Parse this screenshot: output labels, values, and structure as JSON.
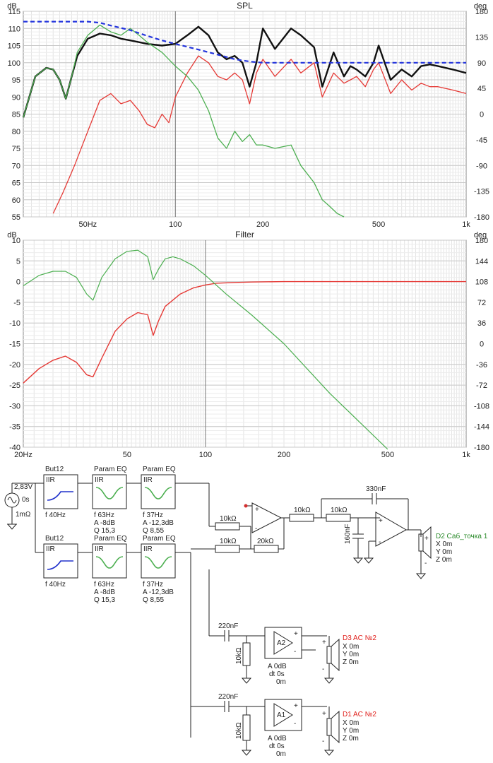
{
  "chart_data": [
    {
      "type": "line",
      "title": "SPL",
      "ylabel": "dB",
      "y2label": "deg",
      "x_scale": "log",
      "xlim": [
        30,
        1000
      ],
      "ylim": [
        55,
        115
      ],
      "y2lim": [
        -180,
        180
      ],
      "grid": true,
      "x_ticks": [
        {
          "v": 50,
          "t": "50Hz"
        },
        {
          "v": 100,
          "t": "100"
        },
        {
          "v": 200,
          "t": "200"
        },
        {
          "v": 500,
          "t": "500"
        },
        {
          "v": 1000,
          "t": "1k"
        }
      ],
      "y_ticks": [
        115,
        110,
        105,
        100,
        95,
        90,
        85,
        80,
        75,
        70,
        65,
        60,
        55
      ],
      "y2_ticks": [
        180,
        135,
        90,
        45,
        0,
        -45,
        -90,
        -135,
        -180
      ],
      "series": [
        {
          "color": "#111111",
          "width": 2.4,
          "dash": "",
          "axis": "left",
          "x": [
            30,
            33,
            36,
            38,
            40,
            42,
            44,
            46,
            50,
            55,
            60,
            65,
            70,
            75,
            80,
            90,
            100,
            110,
            120,
            130,
            140,
            150,
            160,
            170,
            180,
            190,
            200,
            220,
            250,
            270,
            300,
            320,
            350,
            380,
            400,
            420,
            450,
            480,
            500,
            550,
            600,
            650,
            700,
            750,
            800,
            900,
            1000
          ],
          "y": [
            84,
            96,
            98.5,
            98,
            95,
            89.5,
            96,
            102,
            107,
            108.5,
            108,
            107,
            106.5,
            106,
            105.5,
            105,
            105.5,
            108,
            110.5,
            108,
            103,
            101,
            102,
            100,
            93,
            100,
            110,
            104,
            110,
            108,
            104.5,
            93,
            103,
            96,
            99,
            98,
            96,
            100,
            105,
            95,
            98,
            96,
            99,
            99.5,
            99,
            98,
            97
          ]
        },
        {
          "color": "#e53935",
          "width": 1.3,
          "dash": "",
          "axis": "left",
          "x": [
            38,
            41,
            45,
            50,
            55,
            60,
            65,
            70,
            75,
            80,
            85,
            90,
            95,
            100,
            110,
            120,
            130,
            140,
            150,
            160,
            170,
            180,
            190,
            200,
            220,
            250,
            270,
            300,
            320,
            350,
            380,
            400,
            420,
            450,
            480,
            500,
            550,
            600,
            650,
            700,
            750,
            800,
            900,
            1000
          ],
          "y": [
            56,
            62,
            70,
            80,
            89,
            91,
            88,
            89,
            86,
            82,
            81,
            85,
            82.5,
            90,
            97,
            102,
            100,
            96,
            95,
            97,
            95,
            88,
            97,
            101,
            96,
            101,
            97,
            100,
            90,
            97,
            94,
            95,
            96,
            93,
            98,
            100,
            91,
            95,
            92,
            94,
            93,
            93,
            92,
            91
          ]
        },
        {
          "color": "#4caf50",
          "width": 1.3,
          "dash": "",
          "axis": "left",
          "x": [
            30,
            33,
            36,
            38,
            40,
            42,
            44,
            46,
            50,
            55,
            60,
            65,
            70,
            75,
            80,
            90,
            100,
            110,
            120,
            130,
            140,
            150,
            160,
            170,
            180,
            190,
            200,
            220,
            250,
            270,
            300,
            320,
            340,
            360,
            380
          ],
          "y": [
            84,
            96,
            98.5,
            98,
            95,
            89.5,
            96,
            103,
            108,
            111,
            109,
            108,
            110,
            108,
            106,
            103,
            99,
            96,
            92,
            86,
            78,
            75,
            80,
            77,
            79,
            76,
            76,
            75,
            76,
            70,
            65,
            60,
            58,
            56,
            55
          ]
        },
        {
          "color": "#2233dd",
          "width": 2.2,
          "dash": "6,4",
          "axis": "right",
          "x": [
            30,
            40,
            50,
            55,
            60,
            70,
            80,
            90,
            100,
            120,
            140,
            160,
            180,
            200,
            300,
            500,
            700,
            1000
          ],
          "y": [
            162,
            162,
            162,
            160,
            155,
            147,
            137,
            129,
            123,
            113,
            104,
            96,
            92,
            90,
            90,
            90,
            90,
            90
          ]
        }
      ]
    },
    {
      "type": "line",
      "title": "Filter",
      "ylabel": "dB",
      "y2label": "deg",
      "x_scale": "log",
      "xlim": [
        20,
        1000
      ],
      "ylim": [
        -40,
        10
      ],
      "y2lim": [
        -180,
        180
      ],
      "grid": true,
      "x_ticks": [
        {
          "v": 20,
          "t": "20Hz"
        },
        {
          "v": 50,
          "t": "50"
        },
        {
          "v": 100,
          "t": "100"
        },
        {
          "v": 200,
          "t": "200"
        },
        {
          "v": 500,
          "t": "500"
        },
        {
          "v": 1000,
          "t": "1k"
        }
      ],
      "y_ticks": [
        10,
        5,
        0,
        -5,
        -10,
        -15,
        -20,
        -25,
        -30,
        -35,
        -40
      ],
      "y2_ticks": [
        180,
        144,
        108,
        72,
        36,
        0,
        -36,
        -72,
        -108,
        -144,
        -180
      ],
      "series": [
        {
          "color": "#e53935",
          "width": 1.4,
          "dash": "",
          "axis": "left",
          "x": [
            20,
            23,
            26,
            29,
            32,
            35,
            37,
            40,
            45,
            50,
            55,
            60,
            63,
            66,
            70,
            80,
            90,
            100,
            110,
            130,
            150,
            200,
            300,
            500,
            1000
          ],
          "y": [
            -24.5,
            -21,
            -19,
            -18,
            -19.5,
            -22.5,
            -23,
            -18.5,
            -12,
            -9,
            -7.5,
            -8,
            -13,
            -9.5,
            -6,
            -3,
            -1.5,
            -0.8,
            -0.4,
            -0.2,
            -0.1,
            0,
            0,
            0,
            0
          ]
        },
        {
          "color": "#4caf50",
          "width": 1.2,
          "dash": "",
          "axis": "left",
          "x": [
            20,
            23,
            26,
            29,
            32,
            35,
            37,
            40,
            45,
            50,
            55,
            60,
            63,
            66,
            70,
            75,
            80,
            90,
            100,
            120,
            150,
            200,
            300,
            500
          ],
          "y": [
            -1,
            1.5,
            2.5,
            2.5,
            1,
            -3,
            -4.5,
            1,
            5.5,
            7.3,
            7.6,
            6,
            0.5,
            3,
            5.5,
            6,
            5.5,
            3.8,
            1.5,
            -3,
            -8,
            -15,
            -27,
            -40.5
          ]
        }
      ]
    }
  ],
  "schematic": {
    "source": {
      "voltage": "2,83V",
      "delay": "0s",
      "impedance": "1mΩ"
    },
    "row1_blocks": [
      {
        "title": "But12",
        "type": "IIR",
        "params": [
          "f   40Hz"
        ]
      },
      {
        "title": "Param EQ",
        "type": "IIR",
        "params": [
          "f   63Hz",
          "A   -8dB",
          "Q   15,3"
        ]
      },
      {
        "title": "Param EQ",
        "type": "IIR",
        "params": [
          "f   37Hz",
          "A   -12,3dB",
          "Q   8,55"
        ]
      }
    ],
    "row2_blocks": [
      {
        "title": "But12",
        "type": "IIR",
        "params": [
          "f   40Hz"
        ]
      },
      {
        "title": "Param EQ",
        "type": "IIR",
        "params": [
          "f   63Hz",
          "A   -8dB",
          "Q   15,3"
        ]
      },
      {
        "title": "Param EQ",
        "type": "IIR",
        "params": [
          "f   37Hz",
          "A   -12,3dB",
          "Q   8,55"
        ]
      }
    ],
    "r_in1": "10kΩ",
    "r_in2": "10kΩ",
    "r_fb": "20kΩ",
    "r_s1": "10kΩ",
    "r_s2": "10kΩ",
    "c_fb": "330nF",
    "c_gnd": "160nF",
    "sub_speaker": {
      "name": "D2 Саб_точка 1",
      "x": "X 0m",
      "y": "Y 0m",
      "z": "Z 0m"
    },
    "ch_a2": {
      "cap": "220nF",
      "res": "10kΩ",
      "amp": "A2",
      "gain": "A   0dB",
      "dt": "dt 0s",
      "extra": "0m",
      "speaker": {
        "name": "D3 AC №2",
        "x": "X 0m",
        "y": "Y 0m",
        "z": "Z 0m"
      }
    },
    "ch_a1": {
      "cap": "220nF",
      "res": "10kΩ",
      "amp": "A1",
      "gain": "A   0dB",
      "dt": "dt 0s",
      "extra": "0m",
      "speaker": {
        "name": "D1 AC №2",
        "x": "X 0m",
        "y": "Y 0m",
        "z": "Z 0m"
      }
    },
    "plus_sign": "+",
    "minus_sign": "-"
  }
}
